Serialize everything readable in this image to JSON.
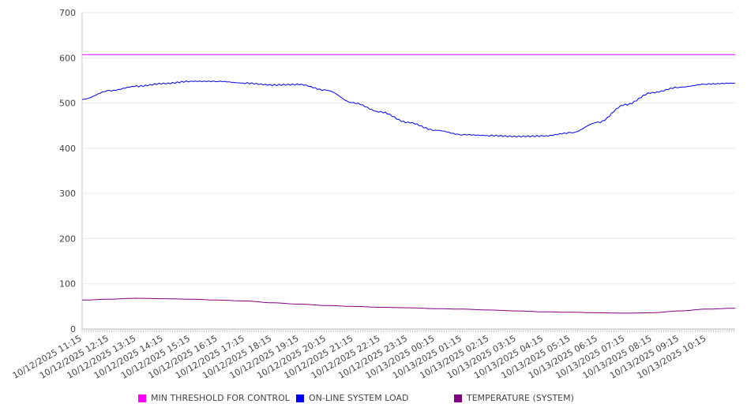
{
  "chart_data": {
    "type": "line",
    "title": "",
    "xlabel": "",
    "ylabel": "",
    "ylim": [
      0,
      700
    ],
    "yticks": [
      0,
      100,
      200,
      300,
      400,
      500,
      600,
      700
    ],
    "grid": true,
    "legend_position": "bottom",
    "x_tick_labels": [
      "10/12/2025 11:15",
      "10/12/2025 12:15",
      "10/12/2025 13:15",
      "10/12/2025 14:15",
      "10/12/2025 15:15",
      "10/12/2025 16:15",
      "10/12/2025 17:15",
      "10/12/2025 18:15",
      "10/12/2025 19:15",
      "10/12/2025 20:15",
      "10/12/2025 21:15",
      "10/12/2025 22:15",
      "10/12/2025 23:15",
      "10/13/2025 00:15",
      "10/13/2025 01:15",
      "10/13/2025 02:15",
      "10/13/2025 03:15",
      "10/13/2025 04:15",
      "10/13/2025 05:15",
      "10/13/2025 06:15",
      "10/13/2025 07:15",
      "10/13/2025 08:15",
      "10/13/2025 09:15",
      "10/13/2025 10:15"
    ],
    "x_hours": [
      0,
      1,
      2,
      3,
      4,
      5,
      6,
      7,
      8,
      9,
      10,
      11,
      12,
      13,
      14,
      15,
      16,
      17,
      18,
      19,
      20,
      21,
      22,
      23,
      24.05
    ],
    "xlim_hours": [
      0,
      24.05
    ],
    "series": [
      {
        "name": "MIN THRESHOLD FOR CONTROL",
        "color": "#ff00ff",
        "values": [
          607,
          607,
          607,
          607,
          607,
          607,
          607,
          607,
          607,
          607,
          607,
          607,
          607,
          607,
          607,
          607,
          607,
          607,
          607,
          607,
          607,
          607,
          607,
          607,
          607
        ]
      },
      {
        "name": "ON-LINE SYSTEM LOAD",
        "color": "#0000ee",
        "values": [
          508,
          527,
          537,
          543,
          548,
          548,
          544,
          540,
          541,
          528,
          500,
          480,
          457,
          440,
          430,
          428,
          426,
          427,
          434,
          457,
          496,
          523,
          535,
          542,
          544
        ]
      },
      {
        "name": "TEMPERATURE (SYSTEM)",
        "color": "#800080",
        "values": [
          64,
          66,
          68,
          67,
          66,
          64,
          62,
          58,
          55,
          52,
          50,
          48,
          47,
          45,
          44,
          42,
          40,
          38,
          37,
          36,
          35,
          36,
          40,
          44,
          46
        ]
      }
    ]
  }
}
